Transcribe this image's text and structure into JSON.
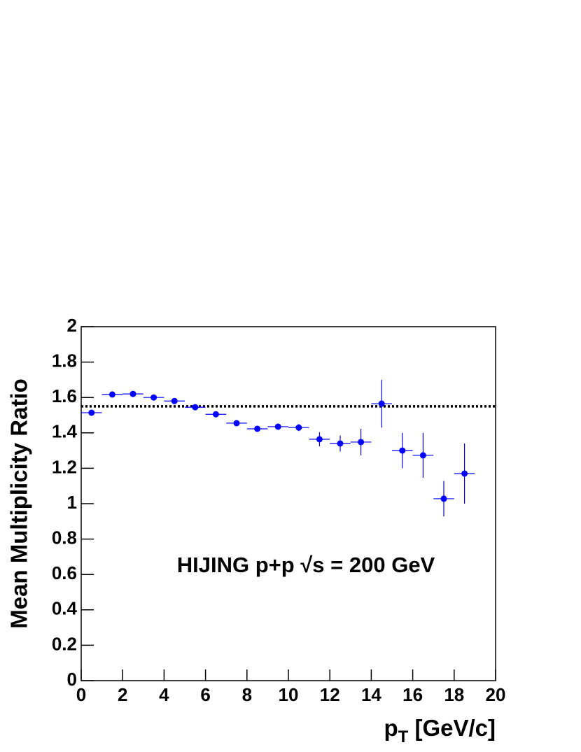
{
  "chart_data": {
    "type": "errorbar",
    "annotation": "HIJING p+p √s = 200 GeV",
    "x_label": [
      "p",
      "T",
      " [GeV/c]"
    ],
    "y_label": "Mean Multiplicity Ratio",
    "x": [
      0.5,
      1.5,
      2.5,
      3.5,
      4.5,
      5.5,
      6.5,
      7.5,
      8.5,
      9.5,
      10.5,
      11.5,
      12.5,
      13.5,
      14.5,
      15.5,
      16.5,
      17.5,
      18.5
    ],
    "xerr": 0.5,
    "series": [
      {
        "name": "HIJING p+p",
        "color": "#0000ff",
        "values": [
          1.514,
          1.617,
          1.62,
          1.6,
          1.58,
          1.545,
          1.505,
          1.455,
          1.423,
          1.435,
          1.43,
          1.364,
          1.34,
          1.348,
          1.565,
          1.3,
          1.273,
          1.028,
          1.17
        ],
        "errors": [
          0.01,
          0.006,
          0.006,
          0.006,
          0.006,
          0.007,
          0.008,
          0.01,
          0.012,
          0.014,
          0.02,
          0.04,
          0.045,
          0.075,
          0.135,
          0.1,
          0.127,
          0.1,
          0.17
        ]
      }
    ],
    "reference_line": 1.55,
    "xlim": [
      0,
      20
    ],
    "xticks": [
      0,
      2,
      4,
      6,
      8,
      10,
      12,
      14,
      16,
      18,
      20
    ],
    "ylim": [
      0,
      2
    ],
    "yticks": [
      0,
      0.2,
      0.4,
      0.6,
      0.8,
      1,
      1.2,
      1.4,
      1.6,
      1.8,
      2
    ],
    "grid": false
  }
}
